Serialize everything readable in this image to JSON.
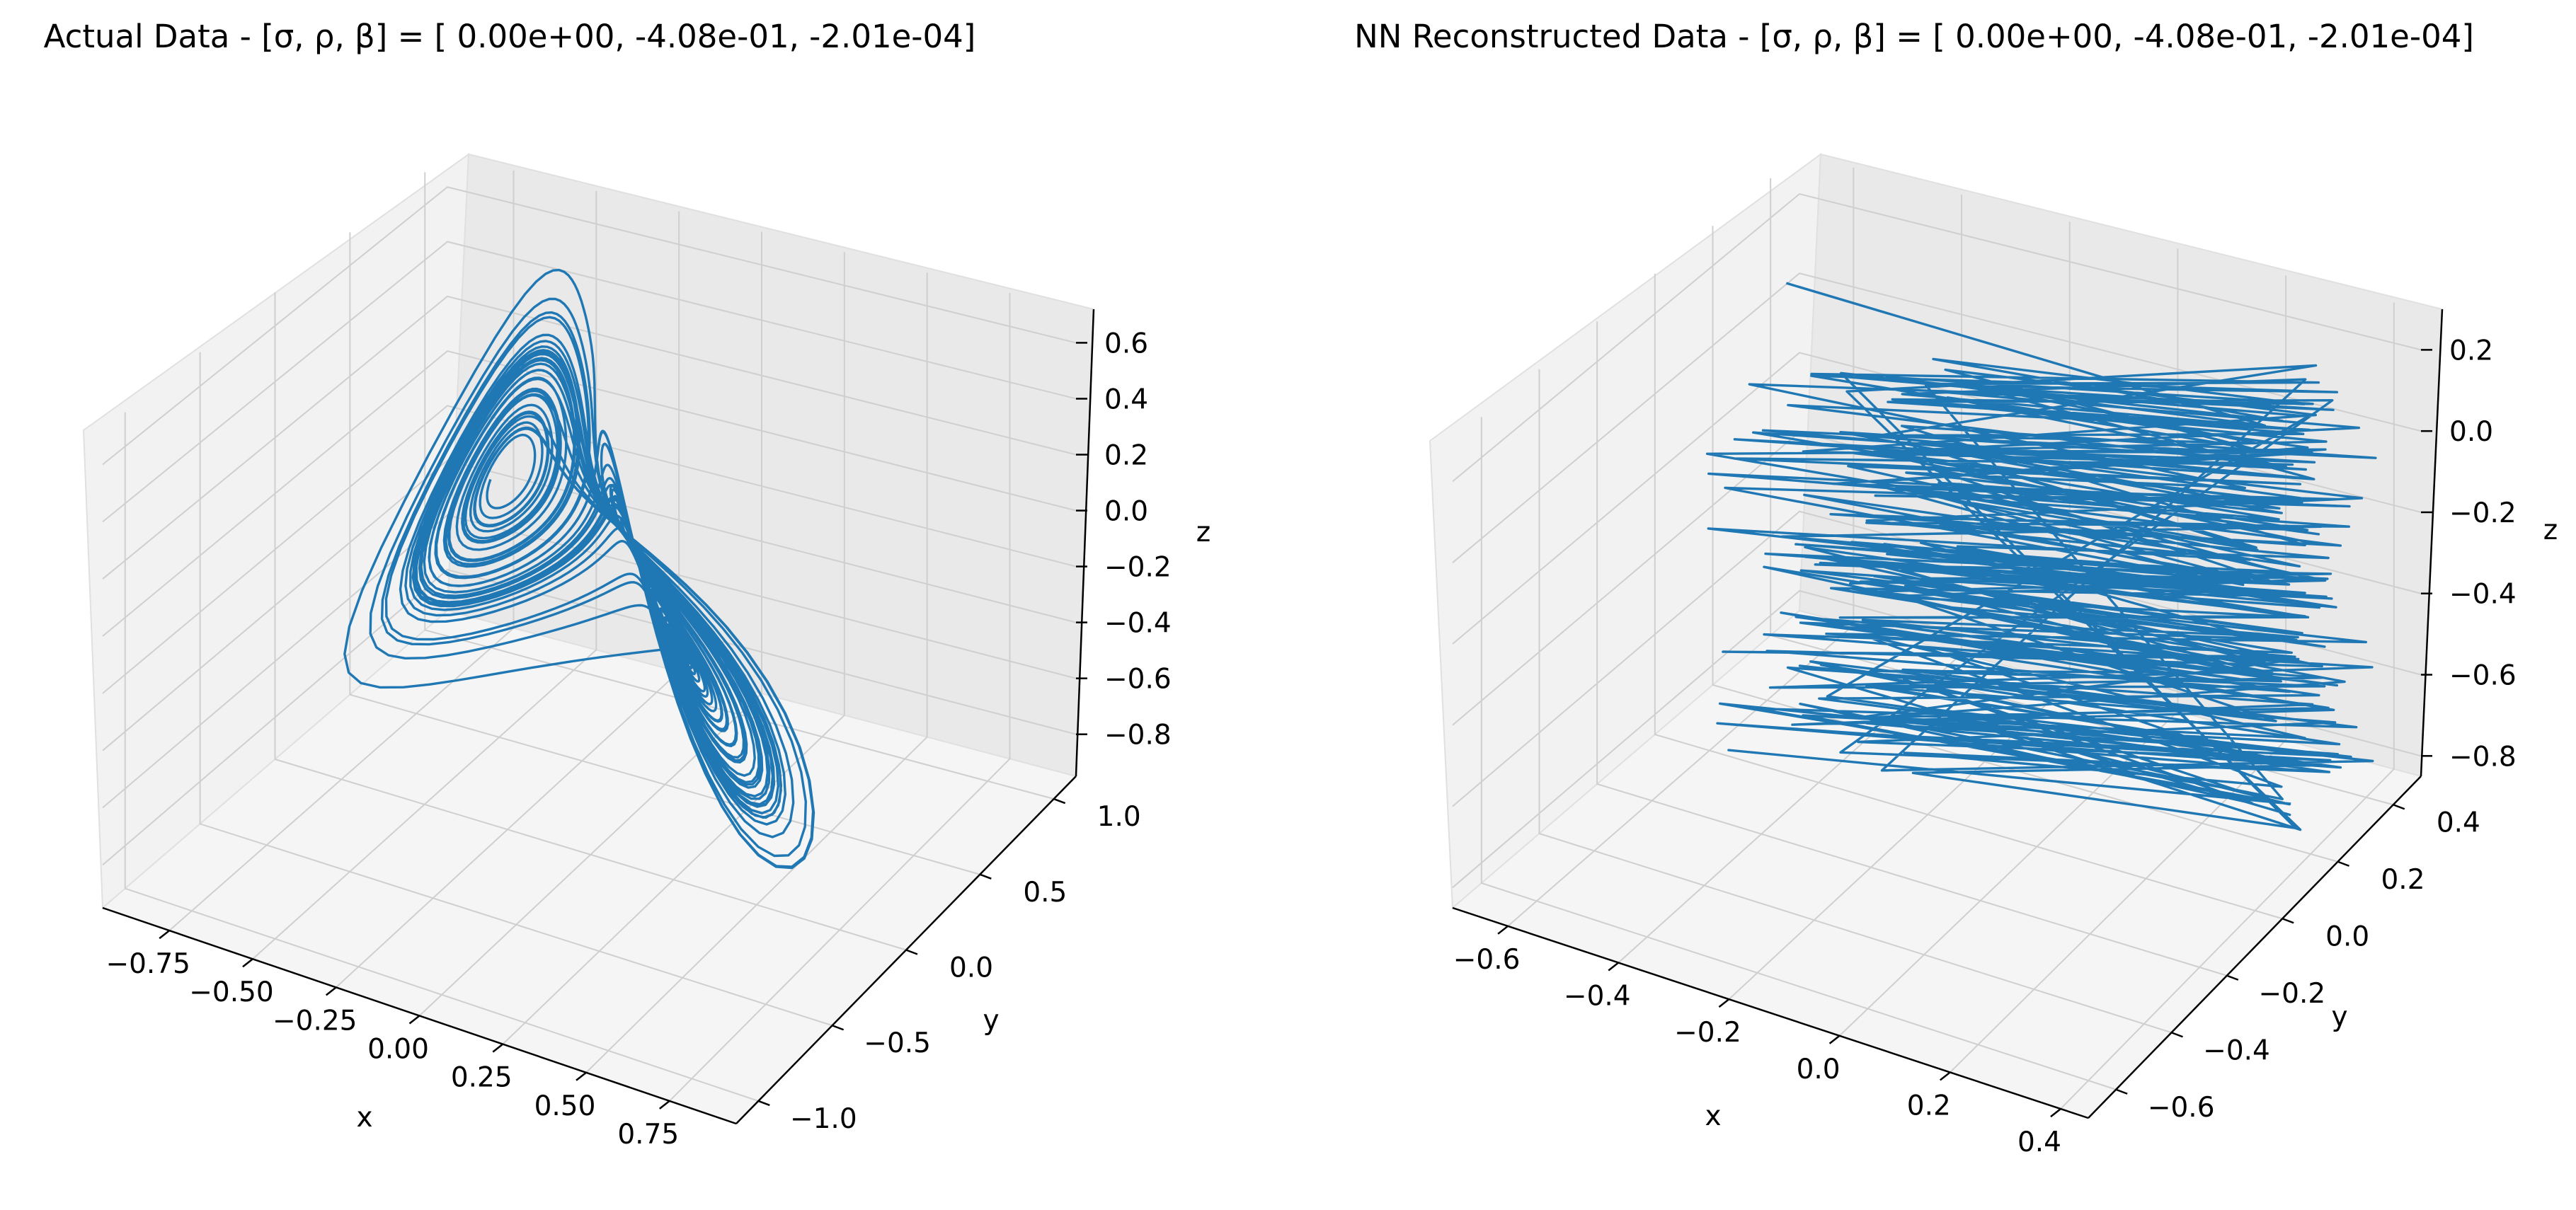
{
  "chart_data": [
    {
      "type": "line",
      "projection": "3d",
      "title": "Actual Data - [σ, ρ, β] = [ 0.00e+00, -4.08e-01, -2.01e-04]",
      "xlabel": "x",
      "ylabel": "y",
      "zlabel": "z",
      "xlim": [
        -0.95,
        0.95
      ],
      "ylim": [
        -1.15,
        1.15
      ],
      "zlim": [
        -0.95,
        0.72
      ],
      "xticks": [
        -0.75,
        -0.5,
        -0.25,
        0.0,
        0.25,
        0.5,
        0.75
      ],
      "xtick_labels": [
        "−0.75",
        "−0.50",
        "−0.25",
        "0.00",
        "0.25",
        "0.50",
        "0.75"
      ],
      "yticks": [
        -1.0,
        -0.5,
        0.0,
        0.5,
        1.0
      ],
      "ytick_labels": [
        "−1.0",
        "−0.5",
        "0.0",
        "0.5",
        "1.0"
      ],
      "zticks": [
        -0.8,
        -0.6,
        -0.4,
        -0.2,
        0.0,
        0.2,
        0.4,
        0.6
      ],
      "ztick_labels": [
        "−0.8",
        "−0.6",
        "−0.4",
        "−0.2",
        "0.0",
        "0.2",
        "0.4",
        "0.6"
      ],
      "grid": true,
      "series": [
        {
          "color": "#1f77b4",
          "shape": "lorenz-attractor",
          "x_range": [
            -0.9,
            0.9
          ],
          "y_range": [
            -1.0,
            1.0
          ],
          "z_range": [
            -0.9,
            0.65
          ]
        }
      ]
    },
    {
      "type": "line",
      "projection": "3d",
      "title": "NN Reconstructed Data - [σ, ρ, β] = [ 0.00e+00, -4.08e-01, -2.01e-04]",
      "xlabel": "x",
      "ylabel": "y",
      "zlabel": "z",
      "xlim": [
        -0.7,
        0.45
      ],
      "ylim": [
        -0.7,
        0.5
      ],
      "zlim": [
        -0.85,
        0.3
      ],
      "xticks": [
        -0.6,
        -0.4,
        -0.2,
        0.0,
        0.2,
        0.4
      ],
      "xtick_labels": [
        "−0.6",
        "−0.4",
        "−0.2",
        "0.0",
        "0.2",
        "0.4"
      ],
      "yticks": [
        -0.6,
        -0.4,
        -0.2,
        0.0,
        0.2,
        0.4
      ],
      "ytick_labels": [
        "−0.6",
        "−0.4",
        "−0.2",
        "0.0",
        "0.2",
        "0.4"
      ],
      "zticks": [
        -0.8,
        -0.6,
        -0.4,
        -0.2,
        0.0,
        0.2
      ],
      "ztick_labels": [
        "−0.8",
        "−0.6",
        "−0.4",
        "−0.2",
        "0.0",
        "0.2"
      ],
      "grid": true,
      "series": [
        {
          "color": "#1f77b4",
          "shape": "zigzag-reconstruction",
          "x_range": [
            -0.6,
            0.4
          ],
          "y_range": [
            -0.6,
            0.4
          ],
          "z_range": [
            -0.8,
            0.25
          ]
        }
      ]
    }
  ]
}
